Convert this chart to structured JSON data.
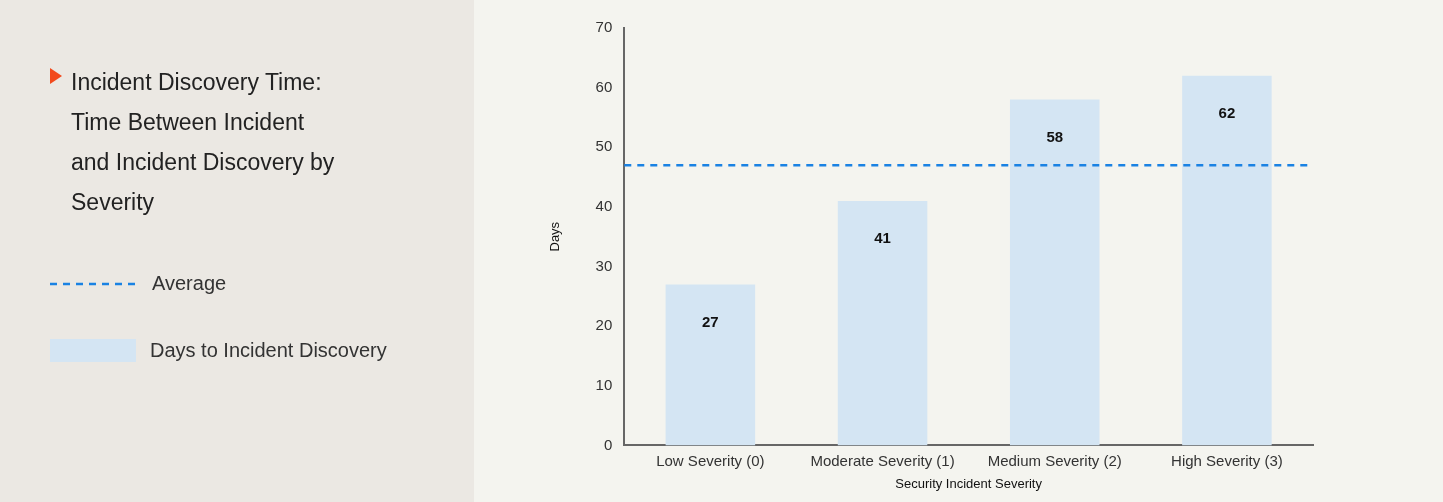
{
  "chart_data": {
    "type": "bar",
    "title": "Incident Discovery Time:",
    "subtitle": "Time Between Incident and Incident Discovery by Severity",
    "xlabel": "Security Incident Severity",
    "ylabel": "Days",
    "categories": [
      "Low Severity (0)",
      "Moderate Severity (1)",
      "Medium Severity (2)",
      "High Severity (3)"
    ],
    "series": [
      {
        "name": "Days to Incident Discovery",
        "color": "#d4e5f3",
        "values": [
          27,
          41,
          58,
          62
        ]
      }
    ],
    "ylim": [
      0,
      70
    ],
    "yticks": [
      0,
      10,
      20,
      30,
      40,
      50,
      60,
      70
    ],
    "grid": false,
    "legend": "left",
    "data_labels": true,
    "ref_lines": [
      {
        "axis": "y",
        "value": 47,
        "label": "Average",
        "color": "#1a82e3",
        "line_style": "dashed"
      }
    ]
  }
}
